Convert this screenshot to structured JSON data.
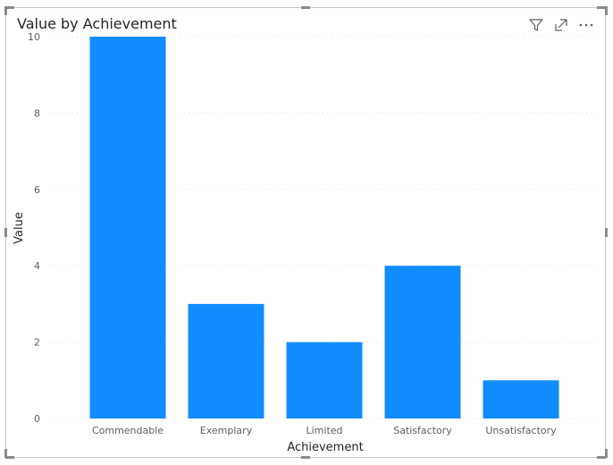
{
  "visual": {
    "title": "Value by Achievement"
  },
  "header_icons": [
    {
      "name": "filter-icon"
    },
    {
      "name": "focus-mode-icon"
    },
    {
      "name": "more-options-icon"
    }
  ],
  "colors": {
    "bar": "#118dff",
    "grid": "#e1e1e1",
    "tick": "#605e5c",
    "title": "#252423"
  },
  "chart_data": {
    "type": "bar",
    "title": "Value by Achievement",
    "xlabel": "Achievement",
    "ylabel": "Value",
    "categories": [
      "Commendable",
      "Exemplary",
      "Limited",
      "Satisfactory",
      "Unsatisfactory"
    ],
    "values": [
      10,
      3,
      2,
      4,
      1
    ],
    "ylim": [
      0,
      10
    ],
    "yticks": [
      "0",
      "2",
      "4",
      "6",
      "8",
      "10"
    ],
    "grid": true,
    "legend": "none"
  }
}
